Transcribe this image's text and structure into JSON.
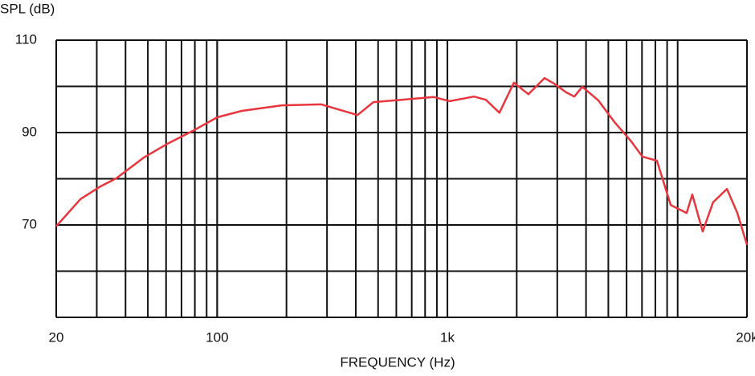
{
  "chart_data": {
    "type": "line",
    "y_label": "SPL (dB)",
    "x_label": "FREQUENCY (Hz)",
    "log_x": true,
    "grid": true,
    "xlim": [
      20,
      20000
    ],
    "xticks": [
      20,
      100,
      {
        "value": 1000,
        "label": "1k"
      },
      {
        "value": 20000,
        "label": "20k"
      }
    ],
    "ylim": [
      50,
      110
    ],
    "yticks": [
      70,
      90,
      110
    ],
    "series": [
      {
        "color": "#e8363f",
        "x": [
          20,
          25.5,
          31,
          36.5,
          48,
          61.5,
          78,
          100,
          128,
          191,
          283,
          407,
          477,
          632,
          871,
          1023,
          1303,
          1469,
          1683,
          1944,
          2248,
          2641,
          2908,
          3281,
          3556,
          3855,
          4520,
          5309,
          6237,
          7031,
          8128,
          9333,
          10940,
          11570,
          12850,
          14250,
          16370,
          18160,
          20000
        ],
        "values": [
          69.7,
          75.6,
          78.3,
          80.1,
          84.6,
          87.7,
          90.3,
          93.3,
          94.7,
          95.9,
          96.1,
          93.8,
          96.6,
          97.1,
          97.7,
          96.8,
          97.8,
          97.1,
          94.3,
          100.8,
          98.3,
          101.8,
          100.6,
          98.7,
          97.8,
          99.9,
          97,
          92.3,
          88.3,
          84.8,
          83.9,
          74.3,
          72.6,
          76.6,
          68.6,
          74.9,
          77.8,
          72.6,
          65.7
        ]
      }
    ]
  }
}
